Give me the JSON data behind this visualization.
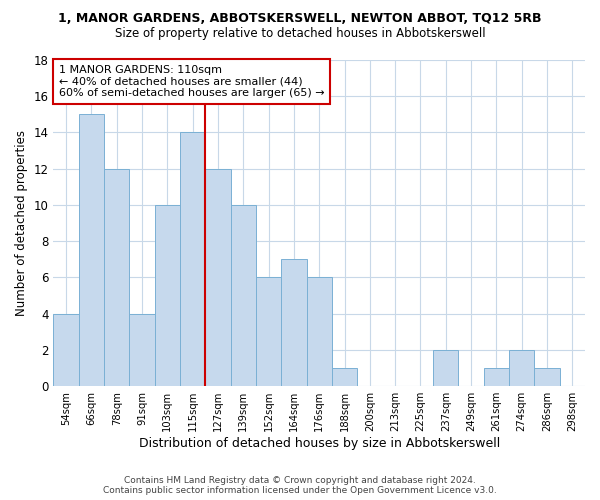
{
  "title": "1, MANOR GARDENS, ABBOTSKERSWELL, NEWTON ABBOT, TQ12 5RB",
  "subtitle": "Size of property relative to detached houses in Abbotskerswell",
  "xlabel": "Distribution of detached houses by size in Abbotskerswell",
  "ylabel": "Number of detached properties",
  "bin_labels": [
    "54sqm",
    "66sqm",
    "78sqm",
    "91sqm",
    "103sqm",
    "115sqm",
    "127sqm",
    "139sqm",
    "152sqm",
    "164sqm",
    "176sqm",
    "188sqm",
    "200sqm",
    "213sqm",
    "225sqm",
    "237sqm",
    "249sqm",
    "261sqm",
    "274sqm",
    "286sqm",
    "298sqm"
  ],
  "bar_heights": [
    4,
    15,
    12,
    4,
    10,
    14,
    12,
    10,
    6,
    7,
    6,
    1,
    0,
    0,
    0,
    2,
    0,
    1,
    2,
    1,
    0
  ],
  "bar_color": "#c6d9ed",
  "bar_edge_color": "#7ab0d4",
  "vline_x": 5.5,
  "vline_color": "#cc0000",
  "annotation_line1": "1 MANOR GARDENS: 110sqm",
  "annotation_line2": "← 40% of detached houses are smaller (44)",
  "annotation_line3": "60% of semi-detached houses are larger (65) →",
  "annotation_box_color": "#ffffff",
  "annotation_box_edge": "#cc0000",
  "ylim": [
    0,
    18
  ],
  "yticks": [
    0,
    2,
    4,
    6,
    8,
    10,
    12,
    14,
    16,
    18
  ],
  "background_color": "#ffffff",
  "grid_color": "#c8d8e8",
  "footer_line1": "Contains HM Land Registry data © Crown copyright and database right 2024.",
  "footer_line2": "Contains public sector information licensed under the Open Government Licence v3.0."
}
